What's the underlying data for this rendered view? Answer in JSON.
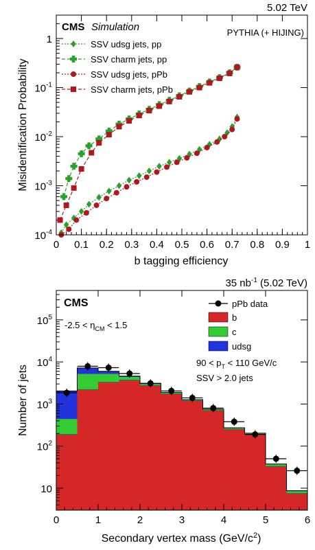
{
  "chart_data": [
    {
      "type": "scatter",
      "energy_label": "5.02 TeV",
      "cms_label": "CMS",
      "sim_label": "Simulation",
      "generator_label": "PYTHIA (+ HIJING)",
      "xlabel": "b tagging efficiency",
      "ylabel": "Misidentification Probability",
      "xlim": [
        0,
        1
      ],
      "ylim": [
        0.0001,
        3
      ],
      "yscale": "log",
      "x_ticks": [
        "0",
        "0.1",
        "0.2",
        "0.3",
        "0.4",
        "0.5",
        "0.6",
        "0.7",
        "0.8",
        "0.9",
        "1"
      ],
      "y_ticks": [
        "10^-4",
        "10^-3",
        "10^-2",
        "10^-1",
        "1"
      ],
      "legend_position": "top-left",
      "series": [
        {
          "name": "SSV udsg jets, pp",
          "color": "#2ca02c",
          "marker": "diamond",
          "line": "dotted",
          "x": [
            0.02,
            0.04,
            0.07,
            0.1,
            0.13,
            0.17,
            0.21,
            0.25,
            0.29,
            0.33,
            0.37,
            0.41,
            0.45,
            0.49,
            0.53,
            0.57,
            0.61,
            0.65,
            0.68,
            0.7,
            0.72
          ],
          "y": [
            0.00011,
            0.00016,
            0.00022,
            0.0003,
            0.00042,
            0.00058,
            0.00078,
            0.001,
            0.0013,
            0.0016,
            0.002,
            0.0025,
            0.003,
            0.0036,
            0.0044,
            0.0055,
            0.007,
            0.009,
            0.012,
            0.016,
            0.025
          ]
        },
        {
          "name": "SSV charm jets, pp",
          "color": "#2ca02c",
          "marker": "plus",
          "line": "dashed",
          "x": [
            0.03,
            0.05,
            0.07,
            0.1,
            0.13,
            0.17,
            0.21,
            0.25,
            0.29,
            0.33,
            0.37,
            0.41,
            0.45,
            0.49,
            0.53,
            0.57,
            0.61,
            0.65,
            0.69,
            0.72
          ],
          "y": [
            0.0006,
            0.0014,
            0.0025,
            0.0045,
            0.0065,
            0.009,
            0.013,
            0.018,
            0.023,
            0.029,
            0.036,
            0.045,
            0.055,
            0.068,
            0.085,
            0.105,
            0.13,
            0.16,
            0.2,
            0.26
          ]
        },
        {
          "name": "SSV udsg jets, pPb",
          "color": "#b0171f",
          "marker": "circle",
          "line": "dotted",
          "x": [
            0.02,
            0.05,
            0.08,
            0.12,
            0.16,
            0.2,
            0.24,
            0.28,
            0.32,
            0.36,
            0.4,
            0.44,
            0.48,
            0.52,
            0.56,
            0.6,
            0.64,
            0.67,
            0.7,
            0.72
          ],
          "y": [
            0.0001,
            0.00013,
            0.0002,
            0.00028,
            0.0004,
            0.00055,
            0.00072,
            0.00095,
            0.0012,
            0.0015,
            0.0019,
            0.0024,
            0.003,
            0.0037,
            0.0046,
            0.006,
            0.0078,
            0.01,
            0.014,
            0.023
          ]
        },
        {
          "name": "SSV charm jets, pPb",
          "color": "#b0171f",
          "marker": "square",
          "line": "dashed",
          "x": [
            0.015,
            0.04,
            0.07,
            0.1,
            0.14,
            0.17,
            0.21,
            0.25,
            0.29,
            0.33,
            0.37,
            0.41,
            0.45,
            0.49,
            0.53,
            0.57,
            0.61,
            0.65,
            0.69,
            0.72
          ],
          "y": [
            0.0002,
            0.0004,
            0.0009,
            0.0022,
            0.0047,
            0.0075,
            0.011,
            0.016,
            0.021,
            0.027,
            0.034,
            0.042,
            0.052,
            0.065,
            0.082,
            0.1,
            0.125,
            0.155,
            0.195,
            0.26
          ]
        }
      ]
    },
    {
      "type": "bar",
      "lumi_label": "35 nb^-1 (5.02 TeV)",
      "cms_label": "CMS",
      "eta_label": "-2.5 < η_CM < 1.5",
      "pt_label": "90 < p_T < 110 GeV/c",
      "ssv_label": "SSV > 2.0 jets",
      "xlabel": "Secondary vertex mass (GeV/c^2)",
      "ylabel": "Number of jets",
      "xlim": [
        0,
        6
      ],
      "ylim": [
        3,
        500000
      ],
      "yscale": "log",
      "x_ticks": [
        "0",
        "1",
        "2",
        "3",
        "4",
        "5",
        "6"
      ],
      "y_ticks": [
        "10",
        "10^2",
        "10^3",
        "10^4",
        "10^5"
      ],
      "legend_position": "top-right",
      "bin_edges": [
        0,
        0.5,
        1,
        1.5,
        2,
        2.5,
        3,
        3.5,
        4,
        4.5,
        5,
        5.5,
        6
      ],
      "stack": [
        {
          "name": "b",
          "color": "#d62728",
          "values": [
            190,
            2200,
            3300,
            3700,
            2750,
            1750,
            1200,
            700,
            250,
            190,
            33,
            7.5
          ]
        },
        {
          "name": "c",
          "color": "#33cc33",
          "values": [
            250,
            3000,
            1900,
            700,
            250,
            120,
            60,
            50,
            20,
            12,
            4,
            1
          ]
        },
        {
          "name": "udsg",
          "color": "#2233dd",
          "values": [
            1600,
            2000,
            800,
            200,
            60,
            25,
            10,
            5,
            2,
            1,
            0.5,
            0.2
          ]
        }
      ],
      "data_series": {
        "name": "pPb data",
        "x": [
          0.25,
          0.75,
          1.25,
          1.75,
          2.25,
          2.75,
          3.25,
          3.75,
          4.25,
          4.75,
          5.25,
          5.75
        ],
        "y": [
          1850,
          7900,
          7300,
          5300,
          3100,
          2050,
          1400,
          800,
          380,
          190,
          50,
          26
        ]
      }
    }
  ]
}
